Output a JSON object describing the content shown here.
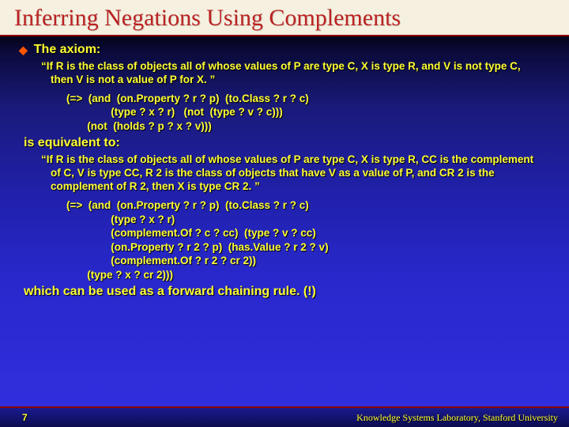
{
  "colors": {
    "title_color": "#bb2222",
    "text_color": "#ffff33",
    "bullet_color": "#ff5500",
    "title_bg": "#f5f0e0",
    "rule_color": "#8a0000"
  },
  "title": "Inferring Negations Using Complements",
  "section1": {
    "heading": "The axiom:",
    "quote": "“If R is the class of objects all of whose values of P are type C, X is type R, and V is not type C, then V is not a value of P for X. ”",
    "code_lines": [
      "(=>  (and  (on.Property ? r ? p)  (to.Class ? r ? c)",
      "               (type ? x ? r)   (not  (type ? v ? c)))",
      "       (not  (holds ? p ? x ? v)))"
    ]
  },
  "equivalent": "is equivalent to:",
  "section2": {
    "quote": "“If R is the class of objects all of whose values of P are type C, X is type R, CC is the complement of C, V is type CC, R 2 is the class of objects that have V as a value of P, and CR 2 is the complement of R 2, then X is type CR 2. ”",
    "code_lines": [
      "(=>  (and  (on.Property ? r ? p)  (to.Class ? r ? c)",
      "               (type ? x ? r)",
      "               (complement.Of ? c ? cc)  (type ? v ? cc)",
      "               (on.Property ? r 2 ? p)  (has.Value ? r 2 ? v)",
      "               (complement.Of ? r 2 ? cr 2))",
      "       (type ? x ? cr 2)))"
    ]
  },
  "conclusion": "which can be used as a forward chaining rule. (!)",
  "footer": {
    "page": "7",
    "affiliation": "Knowledge Systems Laboratory, Stanford University"
  }
}
